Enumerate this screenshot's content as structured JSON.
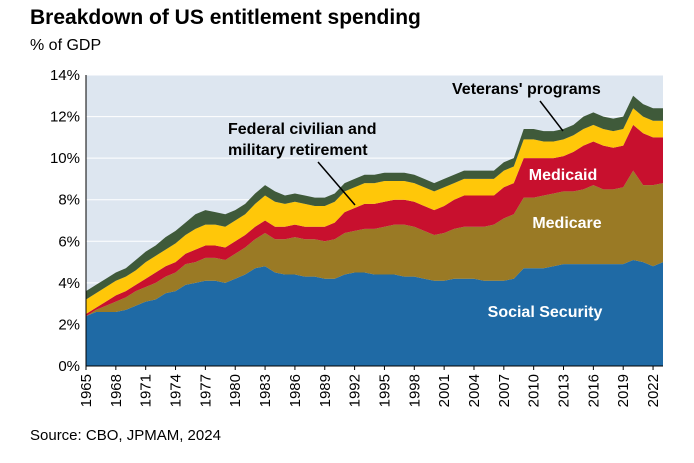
{
  "chart_data": {
    "type": "area",
    "stacked": true,
    "title": "Breakdown of US entitlement spending",
    "subtitle": "% of GDP",
    "source": "Source: CBO, JPMAM, 2024",
    "ylim": [
      0,
      14
    ],
    "y_ticks": [
      "0%",
      "2%",
      "4%",
      "6%",
      "8%",
      "10%",
      "12%",
      "14%"
    ],
    "x_ticks": [
      "1965",
      "1968",
      "1971",
      "1974",
      "1977",
      "1980",
      "1983",
      "1986",
      "1989",
      "1992",
      "1995",
      "1998",
      "2001",
      "2004",
      "2007",
      "2010",
      "2013",
      "2016",
      "2019",
      "2022"
    ],
    "x": [
      1965,
      1966,
      1967,
      1968,
      1969,
      1970,
      1971,
      1972,
      1973,
      1974,
      1975,
      1976,
      1977,
      1978,
      1979,
      1980,
      1981,
      1982,
      1983,
      1984,
      1985,
      1986,
      1987,
      1988,
      1989,
      1990,
      1991,
      1992,
      1993,
      1994,
      1995,
      1996,
      1997,
      1998,
      1999,
      2000,
      2001,
      2002,
      2003,
      2004,
      2005,
      2006,
      2007,
      2008,
      2009,
      2010,
      2011,
      2012,
      2013,
      2014,
      2015,
      2016,
      2017,
      2018,
      2019,
      2020,
      2021,
      2022,
      2023
    ],
    "series": [
      {
        "name": "Social Security",
        "color": "#1f6aa5",
        "values": [
          2.4,
          2.6,
          2.6,
          2.6,
          2.7,
          2.9,
          3.1,
          3.2,
          3.5,
          3.6,
          3.9,
          4.0,
          4.1,
          4.1,
          4.0,
          4.2,
          4.4,
          4.7,
          4.8,
          4.5,
          4.4,
          4.4,
          4.3,
          4.3,
          4.2,
          4.2,
          4.4,
          4.5,
          4.5,
          4.4,
          4.4,
          4.4,
          4.3,
          4.3,
          4.2,
          4.1,
          4.1,
          4.2,
          4.2,
          4.2,
          4.1,
          4.1,
          4.1,
          4.2,
          4.7,
          4.7,
          4.7,
          4.8,
          4.9,
          4.9,
          4.9,
          4.9,
          4.9,
          4.9,
          4.9,
          5.1,
          5.0,
          4.8,
          5.0
        ]
      },
      {
        "name": "Medicare",
        "color": "#9a7a25",
        "values": [
          0.0,
          0.1,
          0.3,
          0.5,
          0.6,
          0.7,
          0.7,
          0.8,
          0.8,
          0.9,
          1.0,
          1.0,
          1.1,
          1.1,
          1.1,
          1.2,
          1.3,
          1.4,
          1.6,
          1.6,
          1.7,
          1.8,
          1.8,
          1.8,
          1.8,
          1.9,
          2.0,
          2.0,
          2.1,
          2.2,
          2.3,
          2.4,
          2.5,
          2.4,
          2.3,
          2.2,
          2.3,
          2.4,
          2.5,
          2.5,
          2.6,
          2.7,
          3.0,
          3.1,
          3.4,
          3.4,
          3.5,
          3.5,
          3.5,
          3.5,
          3.6,
          3.8,
          3.6,
          3.6,
          3.7,
          4.3,
          3.7,
          3.9,
          3.8
        ]
      },
      {
        "name": "Medicaid",
        "color": "#c8102e",
        "values": [
          0.1,
          0.1,
          0.2,
          0.3,
          0.3,
          0.3,
          0.4,
          0.5,
          0.5,
          0.5,
          0.5,
          0.6,
          0.6,
          0.6,
          0.6,
          0.6,
          0.6,
          0.6,
          0.6,
          0.6,
          0.6,
          0.6,
          0.6,
          0.6,
          0.7,
          0.8,
          1.0,
          1.1,
          1.2,
          1.2,
          1.2,
          1.2,
          1.2,
          1.2,
          1.2,
          1.2,
          1.3,
          1.4,
          1.5,
          1.5,
          1.5,
          1.4,
          1.5,
          1.5,
          1.9,
          1.9,
          1.8,
          1.7,
          1.7,
          1.9,
          2.1,
          2.1,
          2.1,
          2.0,
          2.0,
          2.2,
          2.5,
          2.3,
          2.2
        ]
      },
      {
        "name": "Federal civilian and military retirement",
        "color": "#ffc709",
        "values": [
          0.7,
          0.7,
          0.7,
          0.7,
          0.7,
          0.7,
          0.8,
          0.8,
          0.8,
          0.9,
          0.9,
          1.0,
          1.0,
          1.0,
          1.0,
          1.0,
          1.0,
          1.1,
          1.2,
          1.2,
          1.1,
          1.1,
          1.1,
          1.0,
          1.0,
          1.0,
          1.0,
          1.0,
          1.0,
          1.0,
          1.0,
          0.9,
          0.9,
          0.9,
          0.9,
          0.9,
          0.9,
          0.8,
          0.8,
          0.8,
          0.8,
          0.8,
          0.8,
          0.8,
          0.9,
          0.9,
          0.8,
          0.8,
          0.8,
          0.8,
          0.8,
          0.8,
          0.8,
          0.8,
          0.8,
          0.8,
          0.8,
          0.8,
          0.8
        ]
      },
      {
        "name": "Veterans' programs",
        "color": "#3f5a3a",
        "values": [
          0.4,
          0.4,
          0.4,
          0.4,
          0.4,
          0.5,
          0.5,
          0.5,
          0.6,
          0.6,
          0.6,
          0.7,
          0.7,
          0.6,
          0.6,
          0.5,
          0.5,
          0.5,
          0.5,
          0.5,
          0.4,
          0.4,
          0.4,
          0.4,
          0.4,
          0.4,
          0.4,
          0.4,
          0.4,
          0.4,
          0.4,
          0.4,
          0.4,
          0.4,
          0.4,
          0.4,
          0.4,
          0.4,
          0.4,
          0.4,
          0.4,
          0.4,
          0.4,
          0.4,
          0.5,
          0.5,
          0.5,
          0.5,
          0.5,
          0.5,
          0.6,
          0.6,
          0.6,
          0.6,
          0.6,
          0.6,
          0.6,
          0.6,
          0.6
        ]
      }
    ],
    "labels": [
      "Social Security",
      "Medicare",
      "Medicaid",
      "Federal civilian and",
      "military retirement",
      "Veterans' programs"
    ],
    "grid": true,
    "plot_background": "#dde6f0"
  }
}
